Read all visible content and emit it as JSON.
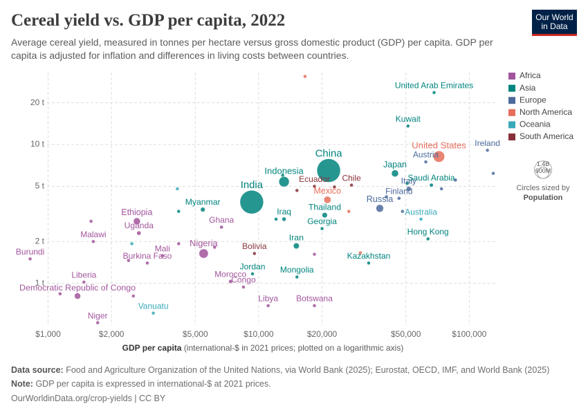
{
  "chart_data": {
    "type": "scatter",
    "title": "Cereal yield vs. GDP per capita, 2022",
    "subtitle": "Average cereal yield, measured in tonnes per hectare versus gross domestic product (GDP) per capita. GDP per capita is adjusted for inflation and differences in living costs between countries.",
    "logo": [
      "Our World",
      "in Data"
    ],
    "xlabel": "GDP per capita",
    "xlabel_note": "(international-$ in 2021 prices; plotted on a logarithmic axis)",
    "xscale": "log",
    "yscale": "log",
    "grid": true,
    "xlim": [
      800,
      135000
    ],
    "ylim": [
      0.5,
      33
    ],
    "xticks": [
      {
        "value": 1000,
        "label": "$1,000"
      },
      {
        "value": 2000,
        "label": "$2,000"
      },
      {
        "value": 5000,
        "label": "$5,000"
      },
      {
        "value": 10000,
        "label": "$10,000"
      },
      {
        "value": 20000,
        "label": "$20,000"
      },
      {
        "value": 50000,
        "label": "$50,000"
      },
      {
        "value": 100000,
        "label": "$100,000"
      }
    ],
    "yticks": [
      {
        "value": 1,
        "label": "1 t"
      },
      {
        "value": 2,
        "label": "2 t"
      },
      {
        "value": 5,
        "label": "5 t"
      },
      {
        "value": 10,
        "label": "10 t"
      },
      {
        "value": 20,
        "label": "20 t"
      }
    ],
    "legend_position": "right",
    "size_legend": {
      "title": "Circles sized by",
      "variable": "Population",
      "values": [
        {
          "value": 1400000000,
          "label": "1.4B"
        },
        {
          "value": 600000000,
          "label": "600M"
        }
      ]
    },
    "series": [
      {
        "name": "Africa",
        "color": "#a2559c",
        "labels": [
          "Ethiopia",
          "Uganda",
          "Malawi",
          "Mali",
          "Burkina Faso",
          "Nigeria",
          "Ghana",
          "Burundi",
          "Liberia",
          "Democratic Republic of Congo",
          "Niger",
          "Congo",
          "Morocco",
          "Libya",
          "Botswana",
          null,
          null,
          null,
          null,
          null,
          null,
          null
        ],
        "x": [
          2640,
          2700,
          1640,
          3490,
          2960,
          5480,
          6660,
          822,
          1480,
          1380,
          1720,
          8470,
          7350,
          11100,
          18400,
          1600,
          1140,
          2540,
          6180,
          4170,
          2410,
          18400
        ],
        "values": [
          2.8,
          2.3,
          2.0,
          1.58,
          1.4,
          1.64,
          2.54,
          1.5,
          1.02,
          0.81,
          0.52,
          0.94,
          1.03,
          0.69,
          0.69,
          2.8,
          0.84,
          0.81,
          1.82,
          1.93,
          1.46,
          1.62
        ],
        "size": [
          123000000,
          47000000,
          20000000,
          23000000,
          23000000,
          219000000,
          33000000,
          13000000,
          5300000,
          99000000,
          26000000,
          6000000,
          37000000,
          6800000,
          2600000,
          5000000,
          5000000,
          5000000,
          5000000,
          5000000,
          5000000,
          5000000
        ]
      },
      {
        "name": "Asia",
        "color": "#00847e",
        "labels": [
          "United Arab Emirates",
          "Kuwait",
          "China",
          "India",
          "Indonesia",
          "Japan",
          "Saudi Arabia",
          "Myanmar",
          "Iraq",
          "Thailand",
          "Georgia",
          "Iran",
          "Jordan",
          "Mongolia",
          "Kazakhstan",
          "Hong Kong",
          null,
          null,
          null,
          null
        ],
        "x": [
          68100,
          51200,
          21500,
          9270,
          13200,
          44400,
          66100,
          5430,
          13200,
          20600,
          20000,
          15100,
          9350,
          15200,
          33300,
          63700,
          4170,
          12100,
          50800,
          13000
        ],
        "values": [
          23.7,
          13.6,
          6.5,
          3.85,
          5.4,
          6.2,
          5.1,
          3.4,
          2.9,
          3.1,
          2.48,
          1.86,
          1.17,
          1.11,
          1.4,
          2.09,
          3.3,
          2.9,
          5.25,
          6.0
        ],
        "size": [
          9400000,
          4300000,
          1420000000,
          1420000000,
          275000000,
          124000000,
          36000000,
          54000000,
          44000000,
          72000000,
          3700000,
          89000000,
          11000000,
          3400000,
          19600000,
          7300000,
          5000000,
          5000000,
          5000000,
          5000000
        ]
      },
      {
        "name": "Europe",
        "color": "#4c6a9c",
        "labels": [
          "Ireland",
          "Austria",
          "Italy",
          "Finland",
          "Russia",
          null,
          null,
          null,
          null,
          null
        ],
        "x": [
          122000,
          62200,
          51600,
          46400,
          37600,
          40400,
          48200,
          86000,
          73800,
          130000
        ],
        "values": [
          9.1,
          7.5,
          4.8,
          4.1,
          3.47,
          4.2,
          3.3,
          5.55,
          4.8,
          6.2
        ],
        "size": [
          5100000,
          9000000,
          59000000,
          5500000,
          145000000,
          5000000,
          5000000,
          5000000,
          5000000,
          5000000
        ]
      },
      {
        "name": "North America",
        "color": "#e56e5a",
        "labels": [
          "United States",
          "Mexico",
          null,
          null,
          null
        ],
        "x": [
          71800,
          21200,
          16600,
          30400,
          26800
        ],
        "values": [
          8.2,
          4.0,
          31,
          1.66,
          3.3
        ],
        "size": [
          333000000,
          127000000,
          3000000,
          3000000,
          3000000
        ]
      },
      {
        "name": "Oceania",
        "color": "#38aaba",
        "labels": [
          "Australia",
          "Vanuatu",
          null,
          null
        ],
        "x": [
          59000,
          3160,
          4110,
          2500
        ],
        "values": [
          2.9,
          0.61,
          4.8,
          1.93
        ],
        "size": [
          26000000,
          320000,
          300000,
          300000
        ]
      },
      {
        "name": "South America",
        "color": "#883039",
        "labels": [
          "Chile",
          "Ecuador",
          "Bolivia",
          null,
          null
        ],
        "x": [
          27600,
          18400,
          9550,
          22900,
          15200
        ],
        "values": [
          5.1,
          5.0,
          1.64,
          4.95,
          4.67
        ],
        "size": [
          19600000,
          18000000,
          12000000,
          5000000,
          5000000
        ]
      }
    ],
    "source_label": "Data source:",
    "source": "Food and Agriculture Organization of the United Nations, via World Bank (2025); Eurostat, OECD, IMF, and World Bank (2025)",
    "note_label": "Note:",
    "note": "GDP per capita is expressed in international-$ at 2021 prices.",
    "url": "OurWorldinData.org/crop-yields | CC BY"
  }
}
